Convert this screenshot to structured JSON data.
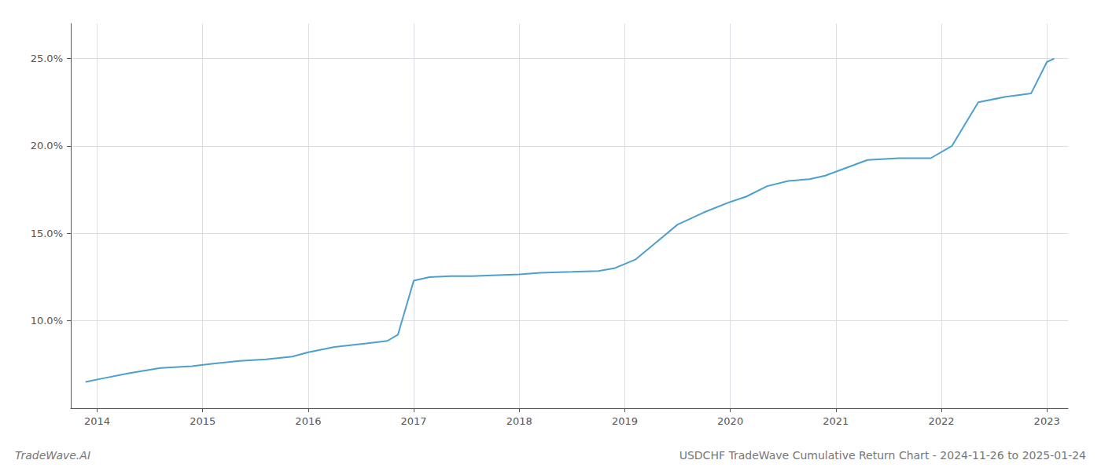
{
  "chart_data": {
    "type": "line",
    "title": "USDCHF TradeWave Cumulative Return Chart - 2024-11-26 to 2025-01-24",
    "annotations": [
      "TradeWave.AI"
    ],
    "x": [
      2013.89,
      2014.05,
      2014.3,
      2014.6,
      2014.9,
      2015.1,
      2015.35,
      2015.6,
      2015.85,
      2016.0,
      2016.25,
      2016.55,
      2016.75,
      2016.85,
      2017.0,
      2017.15,
      2017.35,
      2017.55,
      2017.75,
      2018.0,
      2018.2,
      2018.5,
      2018.75,
      2018.9,
      2019.1,
      2019.3,
      2019.5,
      2019.75,
      2020.0,
      2020.15,
      2020.35,
      2020.55,
      2020.75,
      2020.9,
      2021.1,
      2021.3,
      2021.6,
      2021.9,
      2022.1,
      2022.35,
      2022.6,
      2022.85,
      2023.0,
      2023.07
    ],
    "values": [
      6.5,
      6.7,
      7.0,
      7.3,
      7.4,
      7.55,
      7.7,
      7.8,
      7.95,
      8.2,
      8.5,
      8.7,
      8.85,
      9.2,
      12.3,
      12.5,
      12.55,
      12.55,
      12.6,
      12.65,
      12.75,
      12.8,
      12.85,
      13.0,
      13.5,
      14.5,
      15.5,
      16.2,
      16.8,
      17.1,
      17.7,
      18.0,
      18.1,
      18.3,
      18.75,
      19.2,
      19.3,
      19.3,
      20.0,
      22.5,
      22.8,
      23.0,
      24.8,
      25.0
    ],
    "color": "#4d9fce",
    "xlim": [
      2013.75,
      2023.2
    ],
    "ylim": [
      5.0,
      27.0
    ],
    "xticks": [
      2014,
      2015,
      2016,
      2017,
      2018,
      2019,
      2020,
      2021,
      2022,
      2023
    ],
    "yticks": [
      {
        "value": 10.0,
        "label": "10.0%"
      },
      {
        "value": 15.0,
        "label": "15.0%"
      },
      {
        "value": 20.0,
        "label": "20.0%"
      },
      {
        "value": 25.0,
        "label": "25.0%"
      }
    ],
    "grid": true
  }
}
